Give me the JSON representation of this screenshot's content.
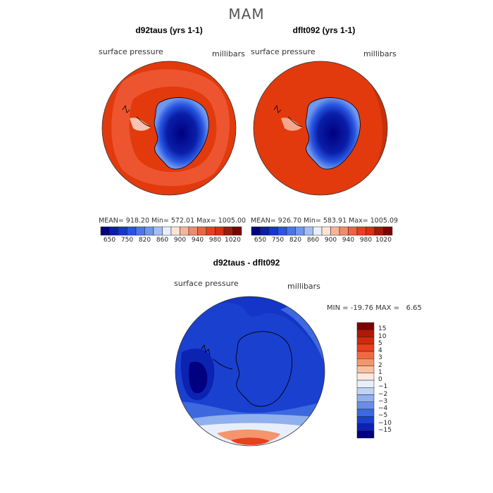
{
  "title": "MAM",
  "panels": [
    {
      "title": "d92taus (yrs 1-1)",
      "variable": "surface pressure",
      "units": "millibars",
      "stats": "MEAN= 918.20   Min= 572.01   Max= 1005.00"
    },
    {
      "title": "dflt092 (yrs 1-1)",
      "variable": "surface pressure",
      "units": "millibars",
      "stats": "MEAN= 926.70   Min= 583.91   Max= 1005.09"
    }
  ],
  "colorbar_top": {
    "colors": [
      "#000080",
      "#0a1ea8",
      "#1438c8",
      "#2855e0",
      "#4a76e8",
      "#7096ee",
      "#a5bff5",
      "#e8eefc",
      "#fde3d6",
      "#f8b49a",
      "#f28a6c",
      "#ec6440",
      "#e64020",
      "#d83010",
      "#a01a08",
      "#800000"
    ],
    "labels": [
      "650",
      "750",
      "820",
      "860",
      "900",
      "940",
      "980",
      "1020"
    ]
  },
  "difference": {
    "title": "d92taus - dflt092",
    "variable": "surface pressure",
    "units": "millibars",
    "stats": "MIN = -19.76 MAX =   6.65",
    "legend_colors": [
      "#800000",
      "#b01808",
      "#d02a0c",
      "#e8401c",
      "#f06a40",
      "#f5956e",
      "#f9c0a0",
      "#fde8de",
      "#e8effc",
      "#c0d2f5",
      "#90b0ee",
      "#6a8ee8",
      "#3c68e0",
      "#1a40d0",
      "#0c22b0",
      "#000080"
    ],
    "legend_labels": [
      "15",
      "10",
      "5",
      "4",
      "3",
      "2",
      "1",
      "0",
      "−1",
      "−2",
      "−3",
      "−4",
      "−5",
      "−10",
      "−15"
    ]
  }
}
